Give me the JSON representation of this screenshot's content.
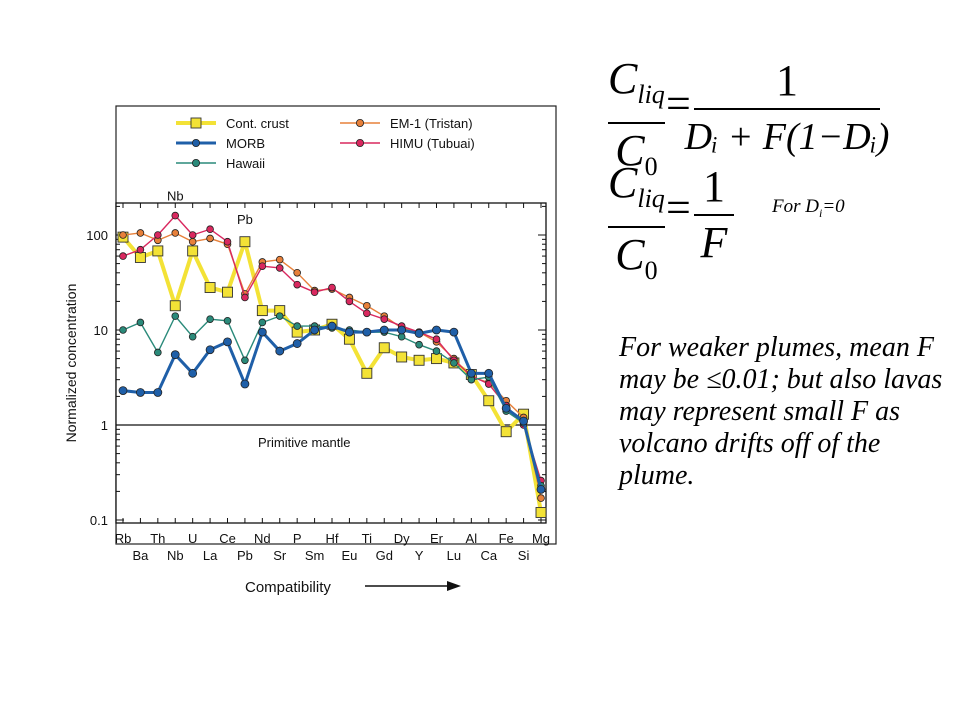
{
  "equations": {
    "eq1": {
      "num_main": "C",
      "num_sub": "liq",
      "den_main": "C",
      "den_sub": "0",
      "equals": "=",
      "rhs_num": "1",
      "rhs_den": "Dᵢ + F(1−Dᵢ)"
    },
    "eq2": {
      "num_main": "C",
      "num_sub": "liq",
      "den_main": "C",
      "den_sub": "0",
      "equals": "=",
      "rhs_num": "1",
      "rhs_den": "F"
    },
    "condition_prefix": "For D",
    "condition_sub": "i",
    "condition_suffix": "=0"
  },
  "note_text": "For weaker plumes, mean F may be ≤0.01; but also lavas may represent small F as volcano drifts off of the plume.",
  "chart_data": {
    "type": "line",
    "ylabel": "Normalized concentration",
    "xlabel": "Compatibility",
    "y_scale": "log",
    "ylim": [
      0.1,
      200
    ],
    "y_ticks": [
      0.1,
      1,
      10,
      100
    ],
    "y_tick_labels": [
      "0.1",
      "1",
      "10",
      "100"
    ],
    "categories": [
      "Rb",
      "Ba",
      "Th",
      "Nb",
      "U",
      "La",
      "Ce",
      "Pb",
      "Nd",
      "Sr",
      "P",
      "Sm",
      "Hf",
      "Eu",
      "Ti",
      "Gd",
      "Dy",
      "Y",
      "Er",
      "Lu",
      "Al",
      "Ca",
      "Fe",
      "Si",
      "Mg"
    ],
    "reference_line": {
      "value": 1,
      "label": "Primitive  mantle"
    },
    "peak_labels": [
      {
        "category": "Nb",
        "text": "Nb",
        "value": 230
      },
      {
        "category": "Pb",
        "text": "Pb",
        "value": 130
      }
    ],
    "legend_position": "top",
    "series": [
      {
        "name": "Cont. crust",
        "color": "#f3e236",
        "marker": "square",
        "values": [
          95,
          58,
          68,
          18,
          68,
          28,
          25,
          85,
          16,
          16,
          9.5,
          10,
          11.5,
          8,
          3.5,
          6.5,
          5.2,
          4.8,
          5,
          4.5,
          3.4,
          1.8,
          0.85,
          1.3,
          0.12
        ]
      },
      {
        "name": "EM-1 (Tristan)",
        "color": "#e7803a",
        "marker": "circle",
        "values": [
          100,
          105,
          88,
          105,
          85,
          92,
          80,
          24,
          52,
          55,
          40,
          26,
          27,
          22,
          18,
          14,
          10.5,
          9.5,
          7.5,
          5,
          3.2,
          2.8,
          1.8,
          1.2,
          0.17
        ]
      },
      {
        "name": "MORB",
        "color": "#1f5fa8",
        "marker": "circle",
        "values": [
          2.3,
          2.2,
          2.2,
          5.5,
          3.5,
          6.2,
          7.5,
          2.7,
          9.5,
          6,
          7.2,
          10,
          11,
          9.5,
          9.5,
          10,
          10,
          9.2,
          10,
          9.5,
          3.5,
          3.5,
          1.5,
          1.1,
          0.21
        ]
      },
      {
        "name": "HIMU (Tubuai)",
        "color": "#d9285f",
        "marker": "circle",
        "values": [
          60,
          70,
          100,
          160,
          100,
          115,
          85,
          22,
          47,
          45,
          30,
          25,
          28,
          20,
          15,
          13,
          11,
          9.5,
          8,
          4.8,
          3.3,
          2.7,
          1.6,
          1.0,
          0.26
        ]
      },
      {
        "name": "Hawaii",
        "color": "#2a8a7a",
        "marker": "circle",
        "values": [
          10,
          12,
          5.8,
          14,
          8.5,
          13,
          12.5,
          4.8,
          12,
          14,
          11,
          11,
          10.5,
          10,
          9.5,
          9.5,
          8.5,
          7,
          6,
          4.5,
          3,
          3.2,
          1.4,
          1.05,
          0.23
        ]
      }
    ]
  }
}
